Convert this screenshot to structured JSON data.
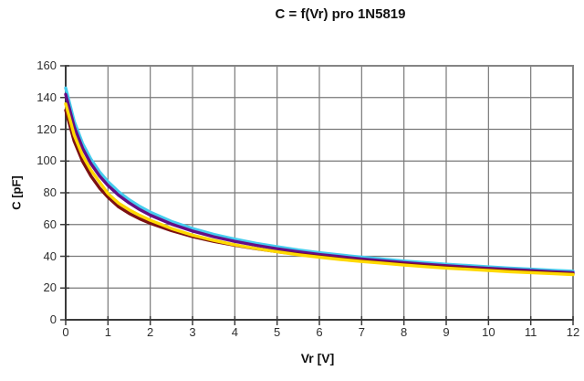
{
  "title": "C = f(Vr) pro 1N5819",
  "colors": {
    "background": "#ffffff",
    "gridline": "#787878",
    "plot_border": "#848484",
    "axis_line": "#3a3a3a",
    "tick_text": "#2e2e2e",
    "title_text": "#111111"
  },
  "chart_data": {
    "type": "line",
    "title": "C = f(Vr) pro 1N5819",
    "xlabel": "Vr [V]",
    "ylabel": "C [pF]",
    "xlim": [
      0,
      12
    ],
    "ylim": [
      0,
      160
    ],
    "x_ticks": [
      0,
      1,
      2,
      3,
      4,
      5,
      6,
      7,
      8,
      9,
      10,
      11,
      12
    ],
    "y_ticks": [
      0,
      20,
      40,
      60,
      80,
      100,
      120,
      140,
      160
    ],
    "grid": "both",
    "legend_position": "none",
    "x": [
      0,
      0.2,
      0.4,
      0.6,
      0.8,
      1,
      1.25,
      1.5,
      1.75,
      2,
      2.5,
      3,
      3.5,
      4,
      4.5,
      5,
      5.5,
      6,
      6.5,
      7,
      7.5,
      8,
      8.5,
      9,
      9.5,
      10,
      10.5,
      11,
      11.5,
      12
    ],
    "series": [
      {
        "name": "sample-cyan",
        "color": "#45CCEE",
        "values": [
          146,
          125.0,
          111.1,
          101.0,
          93.2,
          87.0,
          80.7,
          75.6,
          71.4,
          67.8,
          62.0,
          57.5,
          53.8,
          50.8,
          48.2,
          46.0,
          44.0,
          42.3,
          40.8,
          39.4,
          38.2,
          37.0,
          36.0,
          35.0,
          34.2,
          33.3,
          32.6,
          31.9,
          31.2,
          30.6
        ]
      },
      {
        "name": "sample-violet",
        "color": "#650D86",
        "values": [
          142,
          121.6,
          108.0,
          98.2,
          90.6,
          84.6,
          78.5,
          73.6,
          69.4,
          65.9,
          60.3,
          55.9,
          52.3,
          49.4,
          46.9,
          44.7,
          42.8,
          41.1,
          39.7,
          38.3,
          37.1,
          36.0,
          35.0,
          34.1,
          33.2,
          32.4,
          31.7,
          31.0,
          30.3,
          29.7
        ]
      },
      {
        "name": "sample-darkred",
        "color": "#7C1113",
        "values": [
          132,
          112.5,
          99.8,
          90.4,
          83.0,
          77.2,
          71.2,
          67.0,
          63.6,
          60.8,
          56.2,
          52.4,
          49.4,
          46.9,
          44.8,
          42.9,
          41.3,
          39.8,
          38.4,
          37.1,
          36.0,
          35.0,
          34.0,
          33.1,
          32.3,
          31.5,
          30.8,
          30.1,
          29.5,
          28.9
        ]
      },
      {
        "name": "sample-yellow",
        "color": "#FFD900",
        "values": [
          136,
          116.4,
          103.5,
          94.1,
          86.8,
          79.5,
          73.5,
          69.3,
          65.8,
          62.7,
          57.5,
          53.3,
          50.0,
          47.2,
          44.9,
          42.8,
          41.0,
          39.4,
          38.0,
          36.7,
          35.6,
          34.5,
          33.5,
          32.6,
          31.8,
          31.0,
          30.3,
          29.7,
          29.1,
          28.5
        ]
      }
    ]
  }
}
